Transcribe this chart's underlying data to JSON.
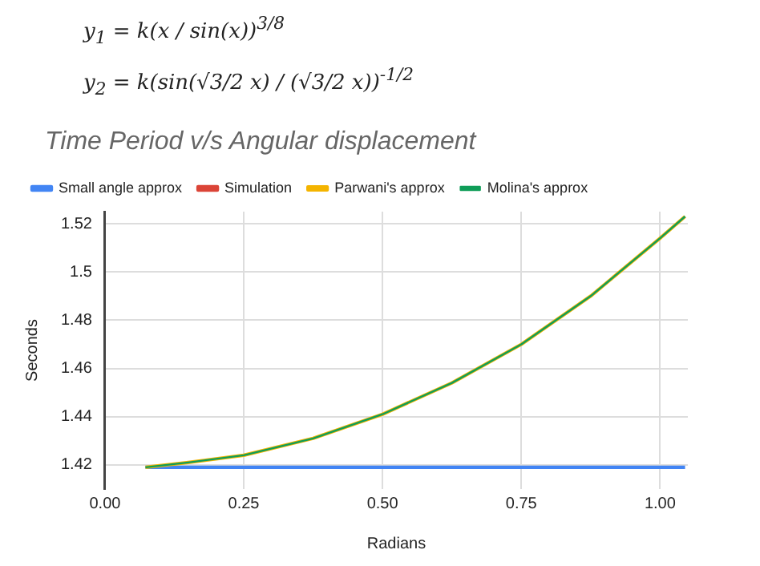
{
  "chart_data": {
    "type": "line",
    "title": "Time Period v/s Angular displacement",
    "annotations": [
      "y$_{1}$ = k(x / sin(x))$^{3/8}$",
      "y$_{2}$ = k(sin(√3/2 x) / (√3/2 x))$^{-1/2}$"
    ],
    "xlabel": "Radians",
    "ylabel": "Seconds",
    "x": [
      0.073,
      0.15,
      0.25,
      0.375,
      0.5,
      0.625,
      0.75,
      0.875,
      1.0,
      1.045
    ],
    "series": [
      {
        "name": "Small angle approx",
        "color": "#4285f4",
        "values": [
          1.419,
          1.419,
          1.419,
          1.419,
          1.419,
          1.419,
          1.419,
          1.419,
          1.419,
          1.419
        ]
      },
      {
        "name": "Simulation",
        "color": "#db4437",
        "values": [
          null,
          null,
          null,
          null,
          null,
          null,
          null,
          null,
          null,
          null
        ]
      },
      {
        "name": "Parwani's approx",
        "color": "#f4b400",
        "values": [
          1.419,
          1.421,
          1.424,
          1.431,
          1.441,
          1.454,
          1.47,
          1.49,
          1.514,
          1.523
        ]
      },
      {
        "name": "Molina's approx",
        "color": "#0f9d58",
        "values": [
          1.419,
          1.421,
          1.424,
          1.431,
          1.441,
          1.454,
          1.47,
          1.49,
          1.514,
          1.523
        ]
      }
    ],
    "xlim": [
      0,
      1.05
    ],
    "xticks": [
      {
        "value": 0,
        "label": "0.00"
      },
      {
        "value": 0.25,
        "label": "0.25"
      },
      {
        "value": 0.5,
        "label": "0.50"
      },
      {
        "value": 0.75,
        "label": "0.75"
      },
      {
        "value": 1,
        "label": "1.00"
      }
    ],
    "ylim": [
      1.41,
      1.525
    ],
    "yticks": [
      1.42,
      1.44,
      1.46,
      1.48,
      1.5,
      1.52
    ],
    "grid": true,
    "legend": "top",
    "marker": "none",
    "line_style": "solid"
  }
}
